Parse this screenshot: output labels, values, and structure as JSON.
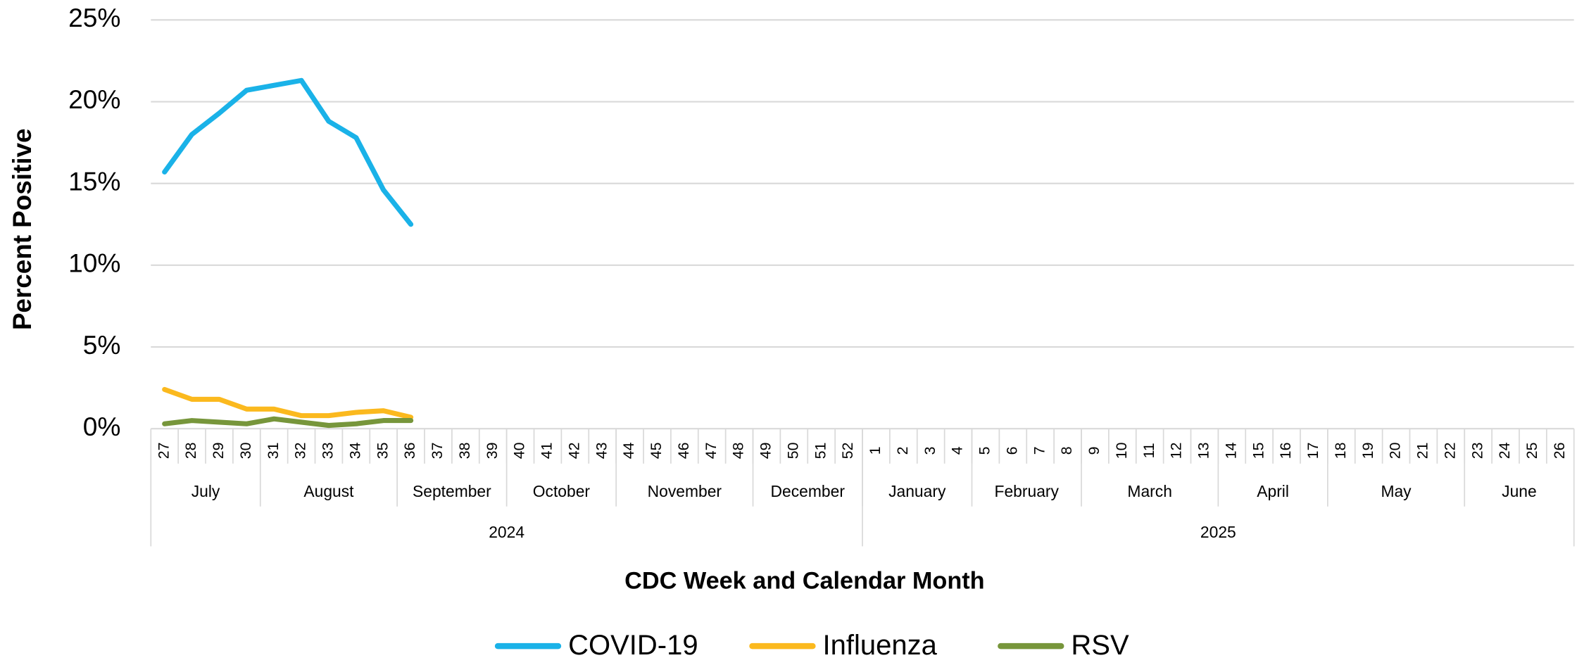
{
  "chart_data": {
    "type": "line",
    "x_axis_label": "CDC Week and Calendar Month",
    "y_axis_label": "Percent Positive",
    "categories": [
      "27",
      "28",
      "29",
      "30",
      "31",
      "32",
      "33",
      "34",
      "35",
      "36",
      "37",
      "38",
      "39",
      "40",
      "41",
      "42",
      "43",
      "44",
      "45",
      "46",
      "47",
      "48",
      "49",
      "50",
      "51",
      "52",
      "1",
      "2",
      "3",
      "4",
      "5",
      "6",
      "7",
      "8",
      "9",
      "10",
      "11",
      "12",
      "13",
      "14",
      "15",
      "16",
      "17",
      "18",
      "19",
      "20",
      "21",
      "22",
      "23",
      "24",
      "25",
      "26"
    ],
    "months": [
      {
        "name": "July",
        "span": 4
      },
      {
        "name": "August",
        "span": 5
      },
      {
        "name": "September",
        "span": 4
      },
      {
        "name": "October",
        "span": 4
      },
      {
        "name": "November",
        "span": 5
      },
      {
        "name": "December",
        "span": 4
      },
      {
        "name": "January",
        "span": 4
      },
      {
        "name": "February",
        "span": 4
      },
      {
        "name": "March",
        "span": 5
      },
      {
        "name": "April",
        "span": 4
      },
      {
        "name": "May",
        "span": 5
      },
      {
        "name": "June",
        "span": 4
      }
    ],
    "years": [
      {
        "name": "2024",
        "span": 26
      },
      {
        "name": "2025",
        "span": 26
      }
    ],
    "series": [
      {
        "name": "COVID-19",
        "color": "#1ab2e8",
        "values": [
          15.7,
          18.0,
          19.3,
          20.7,
          21.0,
          21.3,
          18.8,
          17.8,
          14.6,
          12.5,
          null,
          null,
          null,
          null,
          null,
          null,
          null,
          null,
          null,
          null,
          null,
          null,
          null,
          null,
          null,
          null,
          null,
          null,
          null,
          null,
          null,
          null,
          null,
          null,
          null,
          null,
          null,
          null,
          null,
          null,
          null,
          null,
          null,
          null,
          null,
          null,
          null,
          null,
          null,
          null,
          null,
          null
        ]
      },
      {
        "name": "Influenza",
        "color": "#fbb91e",
        "values": [
          2.4,
          1.8,
          1.8,
          1.2,
          1.2,
          0.8,
          0.8,
          1.0,
          1.1,
          0.7,
          null,
          null,
          null,
          null,
          null,
          null,
          null,
          null,
          null,
          null,
          null,
          null,
          null,
          null,
          null,
          null,
          null,
          null,
          null,
          null,
          null,
          null,
          null,
          null,
          null,
          null,
          null,
          null,
          null,
          null,
          null,
          null,
          null,
          null,
          null,
          null,
          null,
          null,
          null,
          null,
          null,
          null
        ]
      },
      {
        "name": "RSV",
        "color": "#77963b",
        "values": [
          0.3,
          0.5,
          0.4,
          0.3,
          0.6,
          0.4,
          0.2,
          0.3,
          0.5,
          0.5,
          null,
          null,
          null,
          null,
          null,
          null,
          null,
          null,
          null,
          null,
          null,
          null,
          null,
          null,
          null,
          null,
          null,
          null,
          null,
          null,
          null,
          null,
          null,
          null,
          null,
          null,
          null,
          null,
          null,
          null,
          null,
          null,
          null,
          null,
          null,
          null,
          null,
          null,
          null,
          null,
          null,
          null
        ]
      }
    ],
    "ylim": [
      0,
      25
    ],
    "yticks": [
      {
        "value": 0,
        "label": "0%"
      },
      {
        "value": 5,
        "label": "5%"
      },
      {
        "value": 10,
        "label": "10%"
      },
      {
        "value": 15,
        "label": "15%"
      },
      {
        "value": 20,
        "label": "20%"
      },
      {
        "value": 25,
        "label": "25%"
      }
    ],
    "grid": true,
    "legend": "bottom"
  }
}
